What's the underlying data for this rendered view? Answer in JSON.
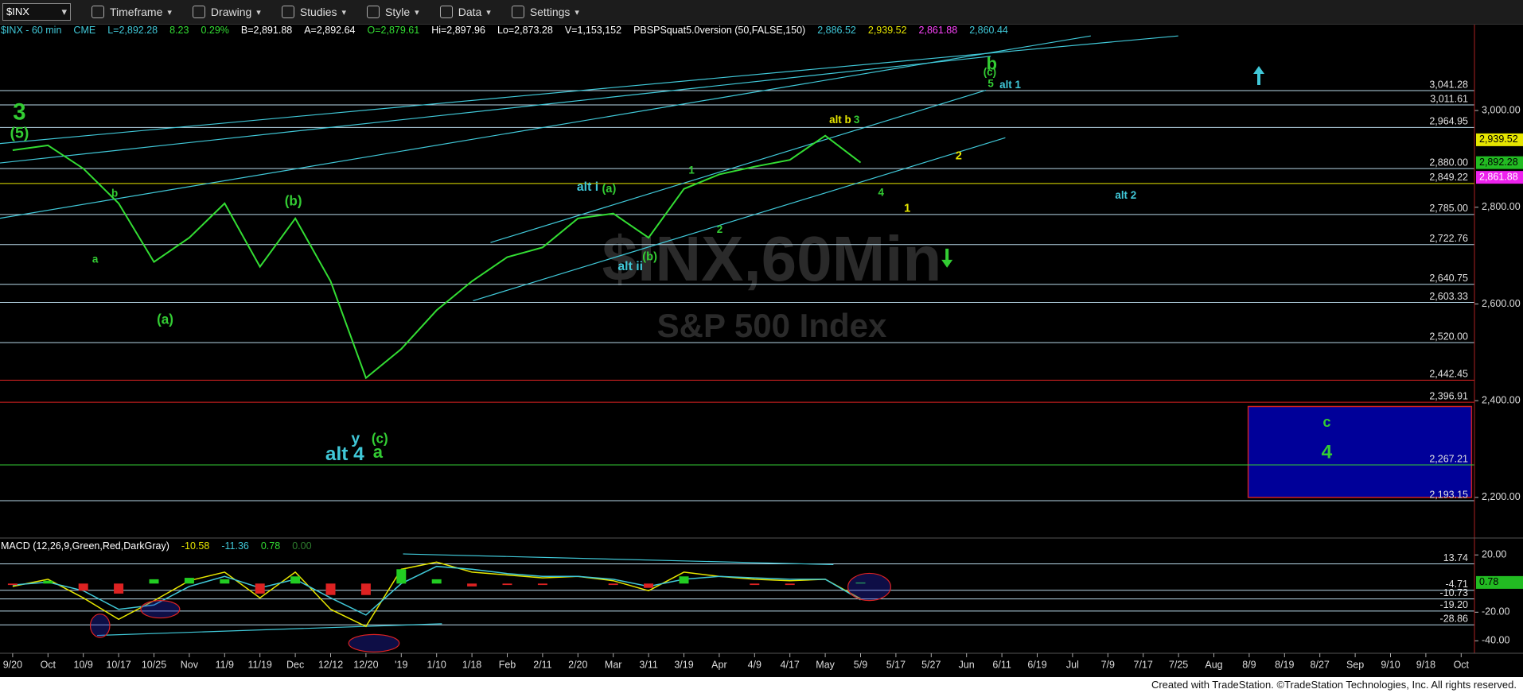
{
  "toolbar": {
    "symbol": "$INX",
    "menus": [
      "Timeframe",
      "Drawing",
      "Studies",
      "Style",
      "Data",
      "Settings"
    ]
  },
  "chart_data": [
    {
      "type": "line",
      "title": "$INX - 60 min",
      "header": [
        {
          "text": "CME",
          "color": "#40c8d8"
        },
        {
          "text": "L=2,892.28",
          "color": "#40c8d8"
        },
        {
          "text": "8.23",
          "color": "#33dd33"
        },
        {
          "text": "0.29%",
          "color": "#33dd33"
        },
        {
          "text": "B=2,891.88",
          "color": "#ffffff"
        },
        {
          "text": "A=2,892.64",
          "color": "#ffffff"
        },
        {
          "text": "O=2,879.61",
          "color": "#33dd33"
        },
        {
          "text": "Hi=2,897.96",
          "color": "#ffffff"
        },
        {
          "text": "Lo=2,873.28",
          "color": "#ffffff"
        },
        {
          "text": "V=1,153,152",
          "color": "#ffffff"
        },
        {
          "text": "PBSPSquat5.0version (50,FALSE,150)",
          "color": "#ffffff"
        },
        {
          "text": "2,886.52",
          "color": "#40c8d8"
        },
        {
          "text": "2,939.52",
          "color": "#e6e600"
        },
        {
          "text": "2,861.88",
          "color": "#ff44ff"
        },
        {
          "text": "2,860.44",
          "color": "#40c8d8"
        }
      ],
      "watermark": [
        "$INX,60Min",
        "S&P 500 Index"
      ],
      "color": "#33dd33",
      "values": [
        2918,
        2928,
        2880,
        2808,
        2687,
        2737,
        2808,
        2677,
        2777,
        2647,
        2447,
        2507,
        2587,
        2647,
        2697,
        2717,
        2777,
        2787,
        2737,
        2838,
        2868,
        2884,
        2898,
        2948,
        2892.28,
        null,
        null,
        null,
        null,
        null,
        null,
        null,
        null,
        null,
        null,
        null,
        null,
        null,
        null,
        null,
        null,
        null
      ],
      "ylim": [
        2116,
        3176
      ],
      "yticks": [
        {
          "value": 2200,
          "label": "2,200.00"
        },
        {
          "value": 2400,
          "label": "2,400.00"
        },
        {
          "value": 2600,
          "label": "2,600.00"
        },
        {
          "value": 2800,
          "label": "2,800.00"
        },
        {
          "value": 3000,
          "label": "3,000.00"
        }
      ],
      "levels": [
        {
          "value": 3041.28,
          "label": "3,041.28",
          "color": "#b8d8e8"
        },
        {
          "value": 3011.61,
          "label": "3,011.61",
          "color": "#b8d8e8"
        },
        {
          "value": 2964.95,
          "label": "2,964.95",
          "color": "#b8d8e8"
        },
        {
          "value": 2880,
          "label": "2,880.00",
          "color": "#b8d8e8"
        },
        {
          "value": 2849.22,
          "label": "2,849.22",
          "color": "#e6e600"
        },
        {
          "value": 2785,
          "label": "2,785.00",
          "color": "#b8d8e8"
        },
        {
          "value": 2722.76,
          "label": "2,722.76",
          "color": "#b8d8e8"
        },
        {
          "value": 2640.75,
          "label": "2,640.75",
          "color": "#b8d8e8"
        },
        {
          "value": 2603.33,
          "label": "2,603.33",
          "color": "#b8d8e8"
        },
        {
          "value": 2520,
          "label": "2,520.00",
          "color": "#b8d8e8"
        },
        {
          "value": 2442.45,
          "label": "2,442.45",
          "color": "#dd2222"
        },
        {
          "value": 2396.91,
          "label": "2,396.91",
          "color": "#dd2222"
        },
        {
          "value": 2267.21,
          "label": "2,267.21",
          "color": "#33cc33"
        },
        {
          "value": 2193.15,
          "label": "2,193.15",
          "color": "#b8d8e8"
        }
      ],
      "markers": [
        {
          "value": 2939.52,
          "label": "2,939.52",
          "color": "#e6e600",
          "text_color": "#000000"
        },
        {
          "value": 2892.28,
          "label": "2,892.28",
          "color": "#22bb22",
          "text_color": "#000000"
        },
        {
          "value": 2861.88,
          "label": "2,861.88",
          "color": "#ee22ee",
          "text_color": "#ffffff"
        }
      ],
      "zone": {
        "from": 2200,
        "to": 2388,
        "color": "#000099",
        "border": "#cc2222"
      },
      "annotations": [
        {
          "text": "3",
          "color": "#33cc33"
        },
        {
          "text": "(5)",
          "color": "#33cc33"
        },
        {
          "text": "b",
          "color": "#33cc33"
        },
        {
          "text": "a",
          "color": "#33cc33"
        },
        {
          "text": "(a)",
          "color": "#33cc33"
        },
        {
          "text": "(b)",
          "color": "#33cc33"
        },
        {
          "text": "y",
          "color": "#40c8d8"
        },
        {
          "text": "alt 4",
          "color": "#40c8d8"
        },
        {
          "text": "(c)",
          "color": "#33cc33"
        },
        {
          "text": "a",
          "color": "#33cc33"
        },
        {
          "text": "alt i",
          "color": "#40c8d8"
        },
        {
          "text": "(a)",
          "color": "#33cc33"
        },
        {
          "text": "alt ii",
          "color": "#40c8d8"
        },
        {
          "text": "(b)",
          "color": "#33cc33"
        },
        {
          "text": "1",
          "color": "#33cc33"
        },
        {
          "text": "2",
          "color": "#33cc33"
        },
        {
          "text": "alt b",
          "color": "#e6e600"
        },
        {
          "text": "3",
          "color": "#33cc33"
        },
        {
          "text": "4",
          "color": "#33cc33"
        },
        {
          "text": "2",
          "color": "#e6e600"
        },
        {
          "text": "1",
          "color": "#e6e600"
        },
        {
          "text": "b",
          "color": "#33cc33"
        },
        {
          "text": "(c)",
          "color": "#33cc33"
        },
        {
          "text": "5",
          "color": "#33cc33"
        },
        {
          "text": "alt 1",
          "color": "#40c8d8"
        },
        {
          "text": "alt 2",
          "color": "#40c8d8"
        },
        {
          "text": "c",
          "color": "#33cc33"
        },
        {
          "text": "4",
          "color": "#33cc33"
        }
      ]
    },
    {
      "type": "macd",
      "title": "MACD (12,26,9,Green,Red,DarkGray)",
      "header": [
        {
          "text": "-10.58",
          "color": "#e6e600"
        },
        {
          "text": "-11.36",
          "color": "#40c8d8"
        },
        {
          "text": "0.78",
          "color": "#33dd33"
        },
        {
          "text": "0.00",
          "color": "#2f7f2f"
        }
      ],
      "categories": [
        "9/20",
        "Oct",
        "10/9",
        "10/17",
        "10/25",
        "Nov",
        "11/9",
        "11/19",
        "Dec",
        "12/12",
        "12/20",
        "'19",
        "1/10",
        "1/18",
        "Feb",
        "2/11",
        "2/20",
        "Mar",
        "3/11",
        "3/19",
        "Apr",
        "4/9",
        "4/17",
        "May",
        "5/9",
        "5/17",
        "5/27",
        "Jun",
        "6/11",
        "6/19",
        "Jul",
        "7/9",
        "7/17",
        "7/25",
        "Aug",
        "8/9",
        "8/19",
        "8/27",
        "Sep",
        "9/10",
        "9/18",
        "Oct"
      ],
      "series": [
        {
          "color": "#e6e600",
          "values": [
            -2,
            3,
            -10,
            -25,
            -12,
            2,
            8,
            -10,
            8,
            -18,
            -30,
            10,
            15,
            8,
            6,
            4,
            5,
            2,
            -5,
            8,
            5,
            3,
            2,
            3,
            -10.58,
            null,
            null,
            null,
            null,
            null,
            null,
            null,
            null,
            null,
            null,
            null,
            null,
            null,
            null,
            null,
            null,
            null
          ]
        },
        {
          "color": "#40c8d8",
          "values": [
            -1,
            1,
            -5,
            -18,
            -15,
            -2,
            5,
            -3,
            3,
            -10,
            -22,
            0,
            12,
            10,
            7,
            5,
            5,
            3,
            -2,
            3,
            5,
            4,
            3,
            3,
            -11.36,
            null,
            null,
            null,
            null,
            null,
            null,
            null,
            null,
            null,
            null,
            null,
            null,
            null,
            null,
            null,
            null,
            null
          ]
        },
        {
          "style": "bar",
          "up_color": "#22cc22",
          "down_color": "#dd2222",
          "values": [
            -1,
            2,
            -5,
            -7,
            3,
            4,
            3,
            -7,
            5,
            -8,
            -8,
            10,
            3,
            -2,
            -1,
            -1,
            0,
            -1,
            -3,
            5,
            0,
            -1,
            -1,
            0,
            0.78,
            null,
            null,
            null,
            null,
            null,
            null,
            null,
            null,
            null,
            null,
            null,
            null,
            null,
            null,
            null,
            null,
            null
          ]
        }
      ],
      "ylim": [
        -44.8,
        31.8
      ],
      "yticks": [
        {
          "value": -40,
          "label": "-40.00"
        },
        {
          "value": -20,
          "label": "-20.00"
        },
        {
          "value": 20,
          "label": "20.00"
        }
      ],
      "levels": [
        {
          "value": 13.74,
          "label": "13.74",
          "color": "#b8d8e8"
        },
        {
          "value": -4.71,
          "label": "-4.71",
          "color": "#b8d8e8"
        },
        {
          "value": -10.73,
          "label": "-10.73",
          "color": "#b8d8e8"
        },
        {
          "value": -19.2,
          "label": "-19.20",
          "color": "#b8d8e8"
        },
        {
          "value": -28.86,
          "label": "-28.86",
          "color": "#b8d8e8"
        }
      ],
      "markers": [
        {
          "value": 0.78,
          "label": "0.78",
          "color": "#22bb22",
          "text_color": "#000000"
        }
      ]
    }
  ],
  "footer": "Created with TradeStation. ©TradeStation Technologies, Inc. All rights reserved."
}
